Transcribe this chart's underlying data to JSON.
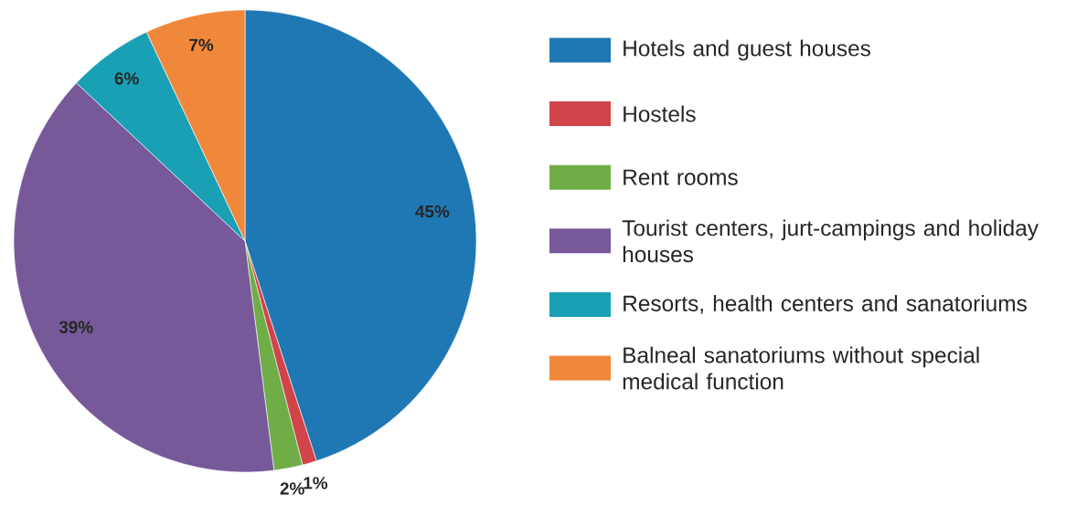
{
  "chart_data": {
    "type": "pie",
    "categories": [
      "Hotels and guest houses",
      "Hostels",
      "Rent rooms",
      "Tourist centers, jurt-campings and holiday houses",
      "Resorts, health centers and sanatoriums",
      "Balneal sanatoriums without special medical function"
    ],
    "values": [
      45,
      1,
      2,
      39,
      6,
      7
    ],
    "value_labels": [
      "45%",
      "1%",
      "2%",
      "39%",
      "6%",
      "7%"
    ],
    "colors": [
      "#1f78b4",
      "#d0444a",
      "#6fad47",
      "#77599a",
      "#1aa0b5",
      "#f0883c"
    ],
    "legend": "right"
  }
}
